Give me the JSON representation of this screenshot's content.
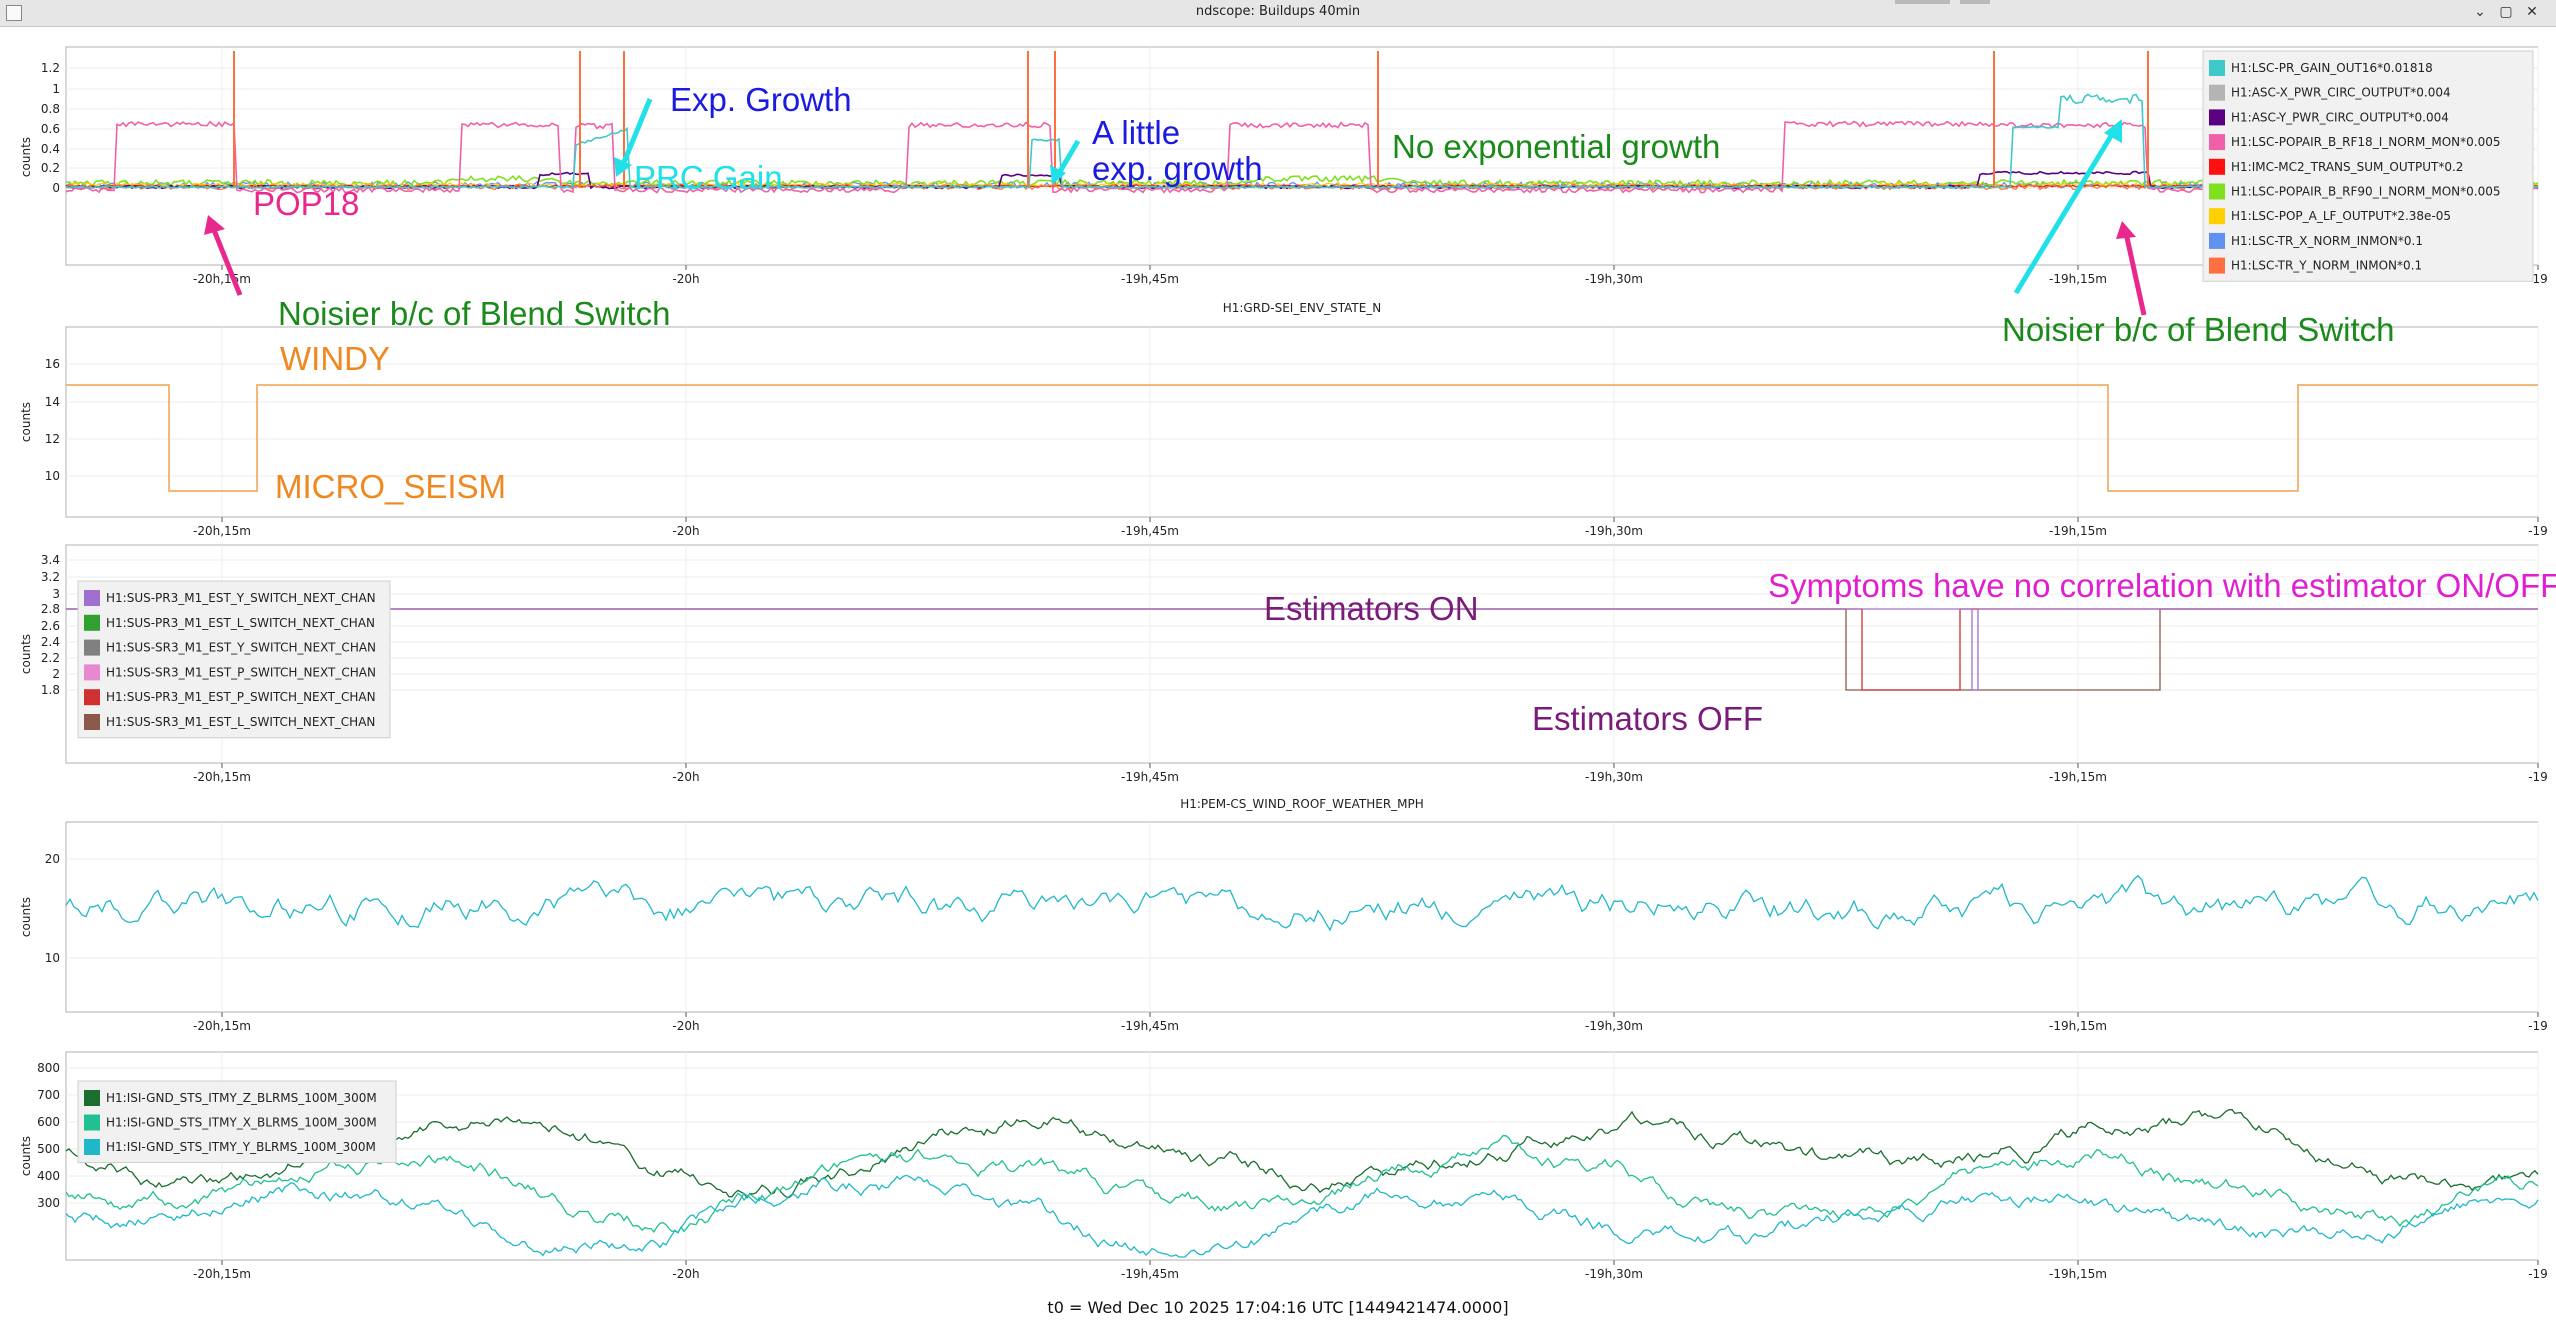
{
  "window": {
    "title": "ndscope: Buildups 40min",
    "min_icon": "chevron-down-icon",
    "max_icon": "maximize-icon",
    "close_icon": "close-icon"
  },
  "footer": {
    "t0": "t0 = Wed Dec 10 2025 17:04:16 UTC [1449421474.0000]"
  },
  "x_ticks": [
    "-20h,15m",
    "-20h",
    "-19h,45m",
    "-19h,30m",
    "-19h,15m",
    "-19"
  ],
  "plots": [
    {
      "id": "buildups",
      "title": "",
      "ylabel": "counts",
      "yticks": [
        "1.2",
        "1",
        "0.8",
        "0.6",
        "0.4",
        "0.2",
        "0"
      ],
      "legend": [
        {
          "label": "H1:LSC-PR_GAIN_OUT16*0.01818",
          "color": "#3fc9c9"
        },
        {
          "label": "H1:ASC-X_PWR_CIRC_OUTPUT*0.004",
          "color": "#b4b4b4"
        },
        {
          "label": "H1:ASC-Y_PWR_CIRC_OUTPUT*0.004",
          "color": "#5a0080"
        },
        {
          "label": "H1:LSC-POPAIR_B_RF18_I_NORM_MON*0.005",
          "color": "#f060a8"
        },
        {
          "label": "H1:IMC-MC2_TRANS_SUM_OUTPUT*0.2",
          "color": "#ff1010"
        },
        {
          "label": "H1:LSC-POPAIR_B_RF90_I_NORM_MON*0.005",
          "color": "#80e020"
        },
        {
          "label": "H1:LSC-POP_A_LF_OUTPUT*2.38e-05",
          "color": "#ffd000"
        },
        {
          "label": "H1:LSC-TR_X_NORM_INMON*0.1",
          "color": "#6090f0"
        },
        {
          "label": "H1:LSC-TR_Y_NORM_INMON*0.1",
          "color": "#ff7040"
        }
      ]
    },
    {
      "id": "env-state",
      "title": "H1:GRD-SEI_ENV_STATE_N",
      "ylabel": "counts",
      "yticks": [
        "16",
        "14",
        "12",
        "10"
      ],
      "legend": []
    },
    {
      "id": "estimators",
      "title": "",
      "ylabel": "counts",
      "yticks": [
        "3.4",
        "3.2",
        "3",
        "2.8",
        "2.6",
        "2.4",
        "2.2",
        "2",
        "1.8"
      ],
      "legend": [
        {
          "label": "H1:SUS-PR3_M1_EST_Y_SWITCH_NEXT_CHAN",
          "color": "#a070d0"
        },
        {
          "label": "H1:SUS-PR3_M1_EST_L_SWITCH_NEXT_CHAN",
          "color": "#30a030"
        },
        {
          "label": "H1:SUS-SR3_M1_EST_Y_SWITCH_NEXT_CHAN",
          "color": "#808080"
        },
        {
          "label": "H1:SUS-SR3_M1_EST_P_SWITCH_NEXT_CHAN",
          "color": "#e888d0"
        },
        {
          "label": "H1:SUS-PR3_M1_EST_P_SWITCH_NEXT_CHAN",
          "color": "#d03030"
        },
        {
          "label": "H1:SUS-SR3_M1_EST_L_SWITCH_NEXT_CHAN",
          "color": "#8b5a4a"
        }
      ]
    },
    {
      "id": "wind",
      "title": "H1:PEM-CS_WIND_ROOF_WEATHER_MPH",
      "ylabel": "counts",
      "yticks": [
        "20",
        "10"
      ],
      "legend": []
    },
    {
      "id": "blrms",
      "title": "",
      "ylabel": "counts",
      "yticks": [
        "800",
        "700",
        "600",
        "500",
        "400",
        "300"
      ],
      "legend": [
        {
          "label": "H1:ISI-GND_STS_ITMY_Z_BLRMS_100M_300M",
          "color": "#1a6e2e"
        },
        {
          "label": "H1:ISI-GND_STS_ITMY_X_BLRMS_100M_300M",
          "color": "#20c090"
        },
        {
          "label": "H1:ISI-GND_STS_ITMY_Y_BLRMS_100M_300M",
          "color": "#20b8c8"
        }
      ]
    }
  ],
  "annotations": [
    {
      "text": "POP18",
      "color": "#e8288c"
    },
    {
      "text": "Exp. Growth",
      "color": "#1a1ae0"
    },
    {
      "text": "PRC Gain",
      "color": "#20e0e8"
    },
    {
      "text": "A little",
      "color": "#1a1ae0"
    },
    {
      "text": "exp. growth",
      "color": "#1a1ae0"
    },
    {
      "text": "No exponential growth",
      "color": "#1a8a1a"
    },
    {
      "text": "Noisier b/c of Blend Switch",
      "color": "#1a8a1a"
    },
    {
      "text": "Noisier b/c of Blend Switch",
      "color": "#1a8a1a"
    },
    {
      "text": "WINDY",
      "color": "#f08820"
    },
    {
      "text": "MICRO_SEISM",
      "color": "#f08820"
    },
    {
      "text": "Estimators ON",
      "color": "#7a1a7a"
    },
    {
      "text": "Estimators OFF",
      "color": "#7a1a7a"
    },
    {
      "text": "Symptoms have no correlation with estimator ON/OFF",
      "color": "#e020d0"
    }
  ]
}
